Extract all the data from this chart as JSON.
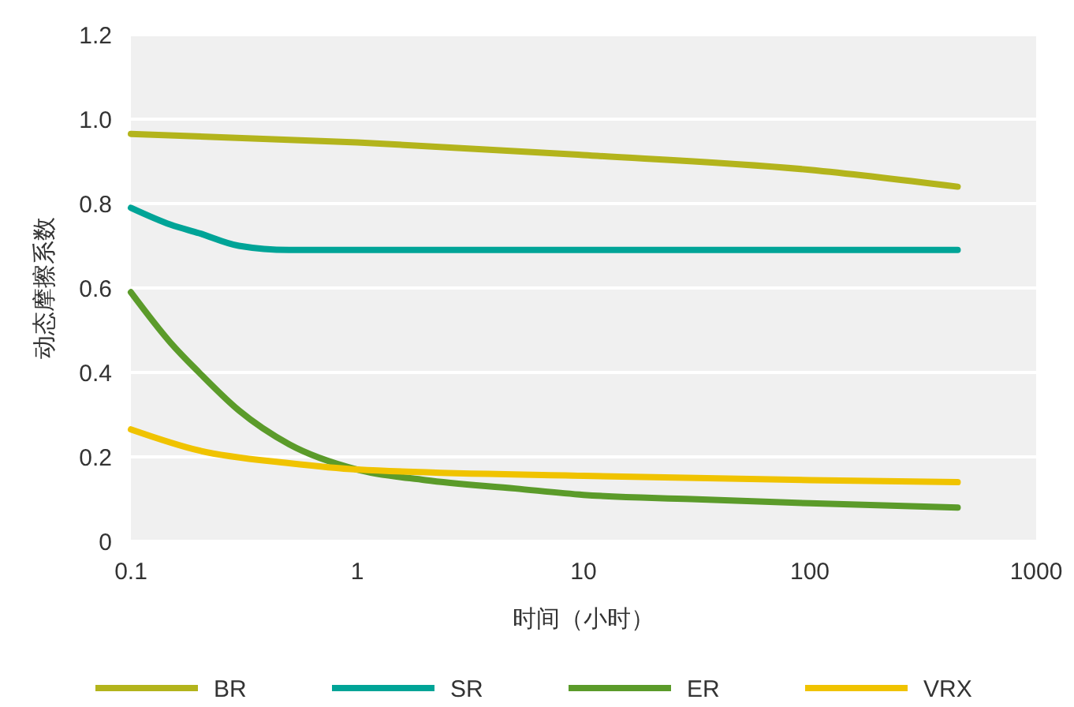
{
  "chart_data": {
    "type": "line",
    "xlabel": "时间（小时）",
    "ylabel": "动态摩擦系数",
    "log": "x",
    "xlim": [
      0.1,
      1000
    ],
    "xticks": [
      0.1,
      1,
      10,
      100,
      1000
    ],
    "ylim": [
      0,
      1.2
    ],
    "yticks": [
      0,
      0.2,
      0.4,
      0.6,
      0.8,
      {
        "value": 1,
        "label": "1.0"
      },
      1.2
    ],
    "grid": "y",
    "legend": "bottom",
    "marker": "none",
    "line_style": "solid",
    "series": [
      {
        "name": "BR",
        "color": "#b3b41c",
        "x": [
          0.1,
          1,
          10,
          100,
          450
        ],
        "values": [
          0.965,
          0.945,
          0.915,
          0.88,
          0.84
        ]
      },
      {
        "name": "SR",
        "color": "#00a497",
        "x": [
          0.1,
          0.15,
          0.2,
          0.3,
          0.5,
          1,
          10,
          100,
          450
        ],
        "values": [
          0.79,
          0.75,
          0.73,
          0.7,
          0.69,
          0.69,
          0.69,
          0.69,
          0.69
        ]
      },
      {
        "name": "ER",
        "color": "#5b9b2a",
        "x": [
          0.1,
          0.15,
          0.2,
          0.3,
          0.5,
          1,
          2,
          5,
          10,
          30,
          100,
          450
        ],
        "values": [
          0.59,
          0.47,
          0.4,
          0.31,
          0.23,
          0.17,
          0.145,
          0.125,
          0.11,
          0.1,
          0.09,
          0.08
        ]
      },
      {
        "name": "VRX",
        "color": "#f0c300",
        "x": [
          0.1,
          0.2,
          0.5,
          1,
          10,
          100,
          450
        ],
        "values": [
          0.265,
          0.215,
          0.185,
          0.17,
          0.155,
          0.145,
          0.14
        ]
      }
    ]
  }
}
